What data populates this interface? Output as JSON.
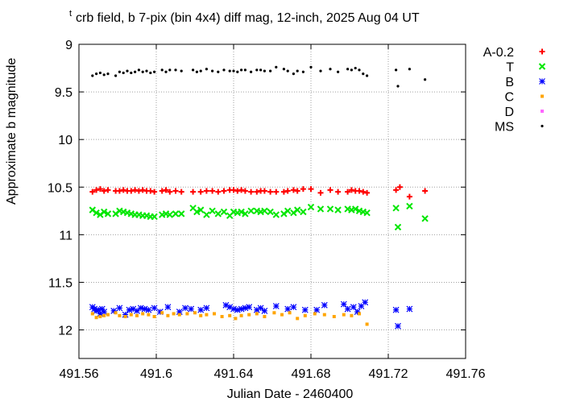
{
  "chart_data": {
    "type": "scatter",
    "title_subscript": "t",
    "title": "crb field, b 7-pix (bin 4x4) diff mag, 12-inch, 2025 Aug 04 UT",
    "xlabel": "Julian Date - 2460400",
    "ylabel": "Approximate b magnitude",
    "xlim": [
      491.56,
      491.76
    ],
    "ylim": [
      12.3,
      9.0
    ],
    "y_inverted": true,
    "grid": true,
    "legend_position": "outside-right",
    "xticks": [
      "491.56",
      "491.6",
      "491.64",
      "491.68",
      "491.72",
      "491.76"
    ],
    "yticks": [
      "9",
      "9.5",
      "10",
      "10.5",
      "11",
      "11.5",
      "12"
    ],
    "xtick_values": [
      491.56,
      491.6,
      491.64,
      491.68,
      491.72,
      491.76
    ],
    "ytick_values": [
      9,
      9.5,
      10,
      10.5,
      11,
      11.5,
      12
    ],
    "series": [
      {
        "name": "A-0.2",
        "marker": "plus",
        "color": "#ff0000",
        "x": [
          491.567,
          491.569,
          491.571,
          491.573,
          491.575,
          491.579,
          491.581,
          491.583,
          491.585,
          491.587,
          491.589,
          491.591,
          491.593,
          491.595,
          491.597,
          491.599,
          491.603,
          491.605,
          491.607,
          491.61,
          491.613,
          491.619,
          491.623,
          491.626,
          491.629,
          491.632,
          491.635,
          491.638,
          491.64,
          491.642,
          491.644,
          491.646,
          491.649,
          491.652,
          491.654,
          491.656,
          491.659,
          491.662,
          491.666,
          491.668,
          491.671,
          491.673,
          491.676,
          491.68,
          491.685,
          491.69,
          491.694,
          491.699,
          491.701,
          491.703,
          491.705,
          491.707,
          491.709,
          491.724,
          491.726,
          491.731,
          491.739
        ],
        "y": [
          10.55,
          10.53,
          10.52,
          10.54,
          10.53,
          10.54,
          10.54,
          10.53,
          10.54,
          10.54,
          10.53,
          10.54,
          10.53,
          10.54,
          10.54,
          10.55,
          10.54,
          10.53,
          10.55,
          10.54,
          10.55,
          10.55,
          10.55,
          10.54,
          10.54,
          10.55,
          10.54,
          10.53,
          10.53,
          10.54,
          10.53,
          10.54,
          10.55,
          10.55,
          10.54,
          10.54,
          10.55,
          10.55,
          10.55,
          10.54,
          10.53,
          10.54,
          10.52,
          10.52,
          10.56,
          10.53,
          10.55,
          10.55,
          10.53,
          10.54,
          10.54,
          10.55,
          10.56,
          10.53,
          10.5,
          10.6,
          10.54
        ]
      },
      {
        "name": "T",
        "marker": "cross",
        "color": "#00e600",
        "x": [
          491.567,
          491.569,
          491.571,
          491.573,
          491.575,
          491.579,
          491.581,
          491.583,
          491.585,
          491.587,
          491.589,
          491.591,
          491.593,
          491.595,
          491.597,
          491.599,
          491.603,
          491.605,
          491.607,
          491.61,
          491.613,
          491.619,
          491.621,
          491.623,
          491.626,
          491.629,
          491.632,
          491.635,
          491.638,
          491.64,
          491.642,
          491.644,
          491.646,
          491.649,
          491.652,
          491.654,
          491.656,
          491.659,
          491.662,
          491.666,
          491.668,
          491.671,
          491.673,
          491.676,
          491.68,
          491.685,
          491.69,
          491.694,
          491.699,
          491.701,
          491.703,
          491.705,
          491.707,
          491.709,
          491.724,
          491.725,
          491.731,
          491.739
        ],
        "y": [
          10.74,
          10.77,
          10.79,
          10.76,
          10.78,
          10.78,
          10.75,
          10.76,
          10.77,
          10.78,
          10.79,
          10.79,
          10.8,
          10.8,
          10.81,
          10.81,
          10.79,
          10.78,
          10.79,
          10.78,
          10.78,
          10.72,
          10.76,
          10.74,
          10.79,
          10.75,
          10.78,
          10.76,
          10.8,
          10.76,
          10.77,
          10.76,
          10.78,
          10.75,
          10.75,
          10.76,
          10.75,
          10.76,
          10.79,
          10.78,
          10.75,
          10.77,
          10.74,
          10.76,
          10.71,
          10.73,
          10.73,
          10.74,
          10.73,
          10.74,
          10.73,
          10.75,
          10.76,
          10.77,
          10.72,
          10.92,
          10.7,
          10.83
        ]
      },
      {
        "name": "B",
        "marker": "star",
        "color": "#0000ff",
        "x": [
          491.567,
          491.568,
          491.569,
          491.57,
          491.571,
          491.572,
          491.573,
          491.578,
          491.581,
          491.584,
          491.586,
          491.588,
          491.59,
          491.592,
          491.594,
          491.596,
          491.599,
          491.602,
          491.606,
          491.612,
          491.615,
          491.618,
          491.623,
          491.626,
          491.636,
          491.638,
          491.64,
          491.642,
          491.644,
          491.646,
          491.648,
          491.652,
          491.654,
          491.656,
          491.662,
          491.668,
          491.671,
          491.677,
          491.683,
          491.687,
          491.697,
          491.699,
          491.702,
          491.704,
          491.706,
          491.708,
          491.724,
          491.725,
          491.731
        ],
        "y": [
          11.76,
          11.78,
          11.8,
          11.79,
          11.83,
          11.78,
          11.81,
          11.8,
          11.77,
          11.84,
          11.79,
          11.78,
          11.8,
          11.77,
          11.78,
          11.79,
          11.77,
          11.81,
          11.76,
          11.81,
          11.77,
          11.78,
          11.79,
          11.77,
          11.74,
          11.76,
          11.78,
          11.79,
          11.78,
          11.77,
          11.76,
          11.79,
          11.77,
          11.8,
          11.75,
          11.78,
          11.76,
          11.79,
          11.79,
          11.74,
          11.73,
          11.78,
          11.76,
          11.81,
          11.75,
          11.71,
          11.79,
          11.96,
          11.78
        ]
      },
      {
        "name": "C",
        "marker": "square",
        "color": "#ffa500",
        "x": [
          491.567,
          491.569,
          491.571,
          491.573,
          491.575,
          491.579,
          491.581,
          491.584,
          491.587,
          491.59,
          491.593,
          491.596,
          491.599,
          491.603,
          491.606,
          491.609,
          491.612,
          491.616,
          491.62,
          491.623,
          491.626,
          491.63,
          491.634,
          491.638,
          491.641,
          491.644,
          491.648,
          491.652,
          491.656,
          491.661,
          491.665,
          491.669,
          491.673,
          491.677,
          491.682,
          491.687,
          491.692,
          491.697,
          491.701,
          491.705,
          491.709
        ],
        "y": [
          11.83,
          11.87,
          11.86,
          11.85,
          11.84,
          11.82,
          11.85,
          11.86,
          11.84,
          11.85,
          11.83,
          11.84,
          11.86,
          11.82,
          11.85,
          11.83,
          11.84,
          11.83,
          11.82,
          11.85,
          11.84,
          11.83,
          11.86,
          11.85,
          11.88,
          11.85,
          11.84,
          11.83,
          11.86,
          11.82,
          11.84,
          11.82,
          11.88,
          11.85,
          11.83,
          11.84,
          11.86,
          11.84,
          11.85,
          11.83,
          11.94
        ]
      },
      {
        "name": "D",
        "marker": "square",
        "color": "#ff66ff",
        "x": [],
        "y": []
      },
      {
        "name": "MS",
        "marker": "dot",
        "color": "#000000",
        "x": [
          491.567,
          491.569,
          491.571,
          491.573,
          491.575,
          491.579,
          491.581,
          491.583,
          491.585,
          491.587,
          491.589,
          491.591,
          491.593,
          491.595,
          491.597,
          491.599,
          491.603,
          491.605,
          491.607,
          491.61,
          491.613,
          491.619,
          491.621,
          491.623,
          491.626,
          491.629,
          491.632,
          491.635,
          491.638,
          491.64,
          491.642,
          491.644,
          491.646,
          491.649,
          491.652,
          491.654,
          491.656,
          491.659,
          491.662,
          491.666,
          491.668,
          491.671,
          491.673,
          491.676,
          491.68,
          491.685,
          491.69,
          491.694,
          491.699,
          491.701,
          491.703,
          491.705,
          491.707,
          491.709,
          491.724,
          491.725,
          491.731,
          491.739
        ],
        "y": [
          9.33,
          9.31,
          9.3,
          9.32,
          9.31,
          9.33,
          9.29,
          9.3,
          9.28,
          9.3,
          9.29,
          9.27,
          9.29,
          9.28,
          9.3,
          9.29,
          9.27,
          9.29,
          9.27,
          9.27,
          9.28,
          9.27,
          9.29,
          9.28,
          9.26,
          9.28,
          9.29,
          9.27,
          9.28,
          9.28,
          9.29,
          9.27,
          9.27,
          9.29,
          9.27,
          9.27,
          9.28,
          9.28,
          9.24,
          9.26,
          9.28,
          9.31,
          9.28,
          9.29,
          9.24,
          9.28,
          9.26,
          9.29,
          9.26,
          9.27,
          9.25,
          9.27,
          9.31,
          9.33,
          9.27,
          9.44,
          9.26,
          9.37
        ]
      }
    ]
  }
}
